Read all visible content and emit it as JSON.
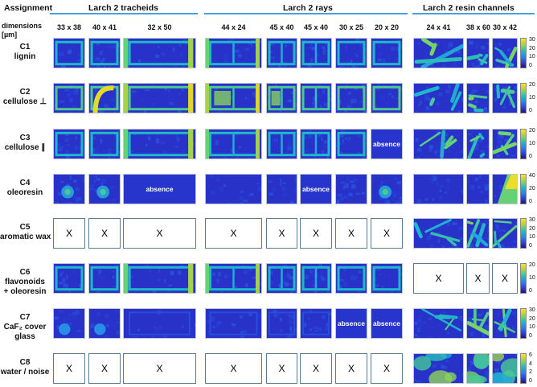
{
  "header": {
    "assignment": "Assignment",
    "dimensions_line1": "dimensions",
    "dimensions_line2": "[µm]",
    "groups": [
      {
        "label": "Larch 2 tracheids"
      },
      {
        "label": "Larch 2 rays"
      },
      {
        "label": "Larch 2 resin channels"
      }
    ]
  },
  "columns": [
    {
      "dim": "33 x 38"
    },
    {
      "dim": "40 x 41"
    },
    {
      "dim": "32 x 50"
    },
    {
      "dim": "44 x 24"
    },
    {
      "dim": "45 x 40"
    },
    {
      "dim": "45 x 40"
    },
    {
      "dim": "30 x 25"
    },
    {
      "dim": "20 x 20"
    },
    {
      "dim": "24 x 41"
    },
    {
      "dim": "38 x 60"
    },
    {
      "dim": "30 x 42"
    }
  ],
  "rows": [
    {
      "id": "C1",
      "name": "lignin",
      "name2": "",
      "scale": [
        "30",
        "20",
        "10",
        "0"
      ],
      "cells": [
        "img",
        "img",
        "img",
        "img",
        "img",
        "img",
        "img",
        "img",
        "img",
        "img",
        "img"
      ]
    },
    {
      "id": "C2",
      "name": "cellulose ⊥",
      "name2": "",
      "scale": [
        "20",
        "10",
        "0"
      ],
      "cells": [
        "img",
        "img",
        "img",
        "img",
        "img",
        "img",
        "img",
        "img",
        "img",
        "img",
        "img"
      ]
    },
    {
      "id": "C3",
      "name": "cellulose ∥",
      "name2": "",
      "scale": [
        "20",
        "10",
        "0"
      ],
      "cells": [
        "img",
        "img",
        "img",
        "img",
        "img",
        "img",
        "img",
        "absence",
        "img",
        "img",
        "img"
      ]
    },
    {
      "id": "C4",
      "name": "oleoresin",
      "name2": "",
      "scale": [
        "40",
        "20",
        "0"
      ],
      "cells": [
        "img",
        "img",
        "absence",
        "img",
        "img",
        "absence",
        "img",
        "img",
        "img",
        "img",
        "img"
      ]
    },
    {
      "id": "C5",
      "name": "aromatic wax",
      "name2": "",
      "scale": [
        "30",
        "20",
        "10",
        "0"
      ],
      "cells": [
        "X",
        "X",
        "X",
        "X",
        "X",
        "X",
        "X",
        "X",
        "img",
        "img",
        "img"
      ]
    },
    {
      "id": "C6",
      "name": "flavonoids",
      "name2": "+ oleoresin",
      "scale": [
        "20",
        "10",
        "0"
      ],
      "cells": [
        "img",
        "img",
        "img",
        "img",
        "img",
        "img",
        "img",
        "img",
        "X",
        "X",
        "X"
      ]
    },
    {
      "id": "C7",
      "name": "CaF₂ cover",
      "name2": "glass",
      "scale": [
        "30",
        "20",
        "10",
        "0"
      ],
      "cells": [
        "img",
        "img",
        "img",
        "img",
        "img",
        "img",
        "absence",
        "absence",
        "img",
        "img",
        "img"
      ]
    },
    {
      "id": "C8",
      "name": "water / noise",
      "name2": "",
      "scale": [
        "6",
        "4",
        "2",
        "0"
      ],
      "cells": [
        "X",
        "X",
        "X",
        "X",
        "X",
        "X",
        "X",
        "X",
        "img",
        "img",
        "img"
      ]
    }
  ],
  "labels": {
    "absence": "absence",
    "x": "X"
  },
  "colors": {
    "accent_line": "#4aa0d8",
    "map_low": "#2a2fb8",
    "map_mid": "#2fa6d8",
    "map_high": "#fbe52a"
  }
}
